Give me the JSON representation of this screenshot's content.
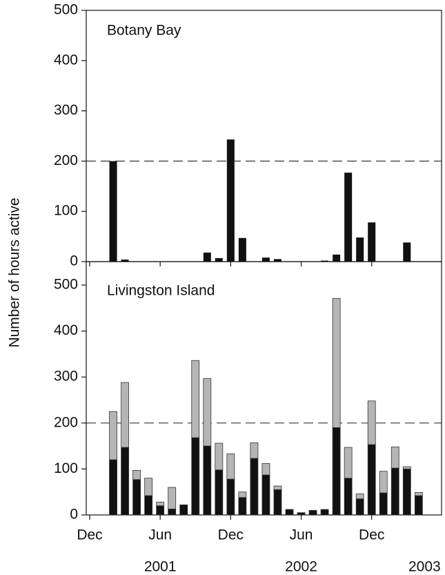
{
  "chart_data": [
    {
      "type": "bar",
      "title": "Botany Bay",
      "ylabel": "Number of hours active",
      "color": "#111111",
      "values": [
        null,
        null,
        200,
        4,
        null,
        null,
        null,
        null,
        null,
        null,
        18,
        7,
        243,
        47,
        null,
        8,
        5,
        null,
        null,
        null,
        2,
        14,
        177,
        48,
        78,
        null,
        null,
        38,
        null,
        null
      ],
      "ylim": [
        0,
        500
      ],
      "yticks": [
        0,
        100,
        200,
        300,
        400,
        500
      ],
      "reference_line": 200
    },
    {
      "type": "stacked_bar",
      "title": "Livingston Island",
      "categories": [
        "Dec",
        null,
        null,
        null,
        null,
        null,
        "Jun",
        null,
        null,
        null,
        null,
        null,
        "Dec",
        null,
        null,
        null,
        null,
        null,
        "Jun",
        null,
        null,
        null,
        null,
        null,
        "Dec",
        null,
        null,
        null,
        null,
        null
      ],
      "year_labels": [
        "2001",
        "2002",
        "2003"
      ],
      "series": [
        {
          "color": "#111111",
          "values": [
            null,
            null,
            120,
            147,
            77,
            42,
            20,
            13,
            22,
            168,
            150,
            98,
            78,
            38,
            123,
            87,
            55,
            12,
            5,
            10,
            12,
            190,
            80,
            35,
            153,
            48,
            102,
            100,
            42,
            null
          ]
        },
        {
          "color": "#b5b5b5",
          "values": [
            null,
            null,
            105,
            141,
            20,
            38,
            8,
            47,
            0,
            168,
            147,
            58,
            55,
            12,
            34,
            25,
            8,
            0,
            0,
            0,
            0,
            281,
            67,
            11,
            95,
            47,
            46,
            5,
            7,
            null
          ]
        }
      ],
      "ylim": [
        0,
        551
      ],
      "yticks": [
        0,
        100,
        200,
        300,
        400,
        500
      ],
      "reference_line": 200
    }
  ]
}
